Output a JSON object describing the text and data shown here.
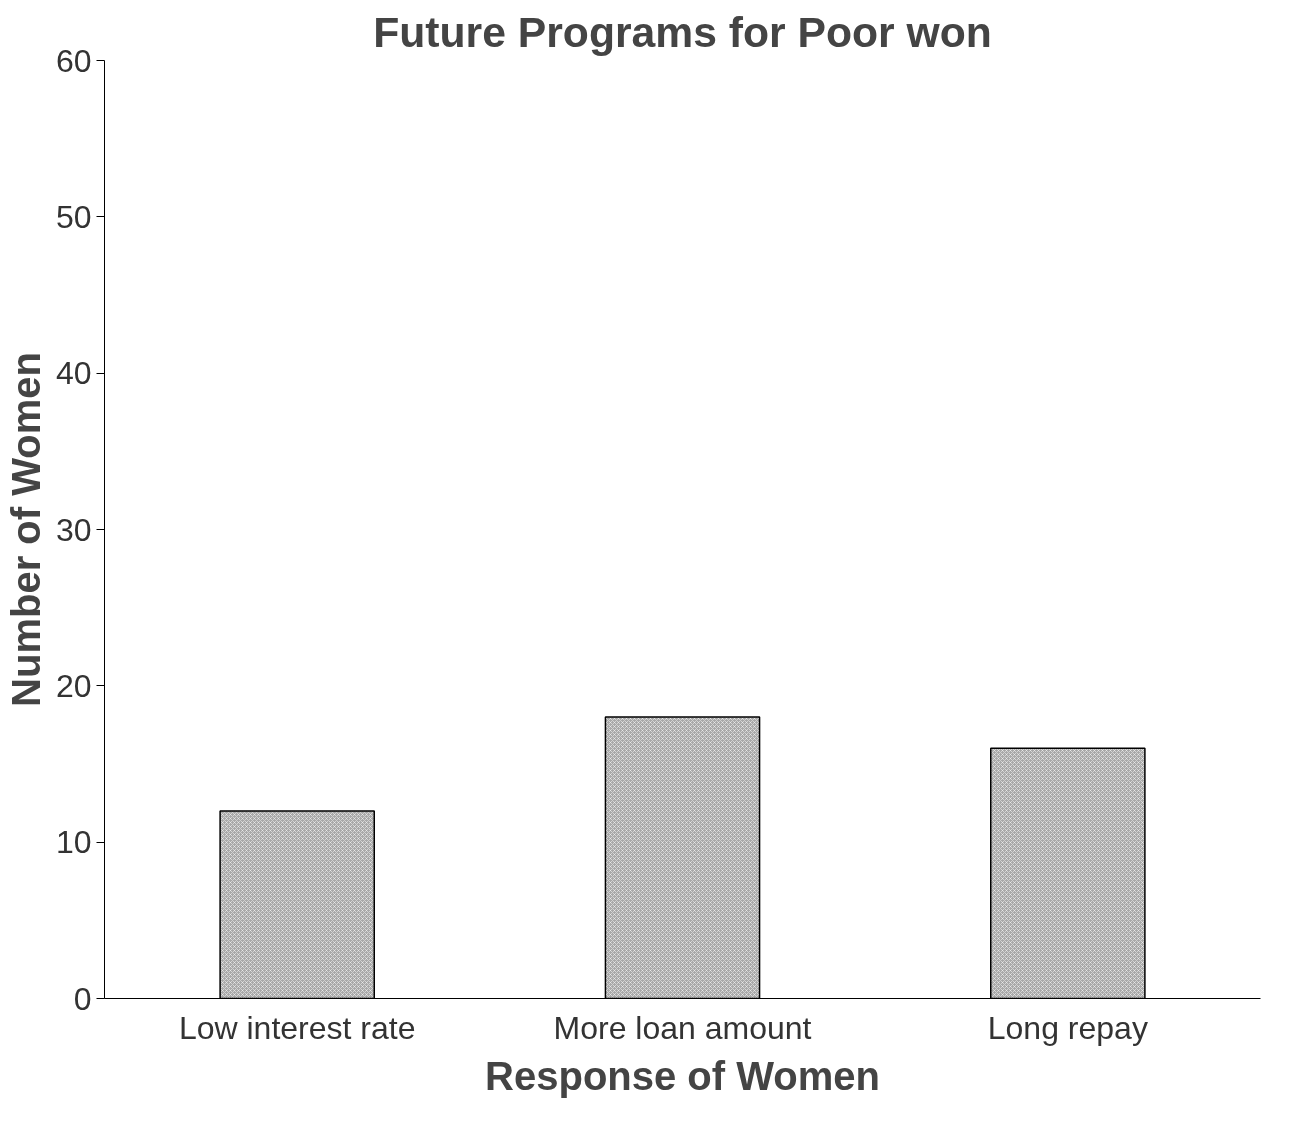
{
  "chart_data": {
    "type": "bar",
    "title": "Future Programs for Poor won",
    "xlabel": "Response of Women",
    "ylabel": "Number of Women",
    "categories": [
      "Low interest rate",
      "More loan amount",
      "Long repay"
    ],
    "values": [
      12,
      18,
      16
    ],
    "color": "#a8a8a8",
    "ylim": [
      0,
      60
    ],
    "yticks": [
      0,
      10,
      20,
      30,
      40,
      50,
      60
    ],
    "grid": false
  }
}
